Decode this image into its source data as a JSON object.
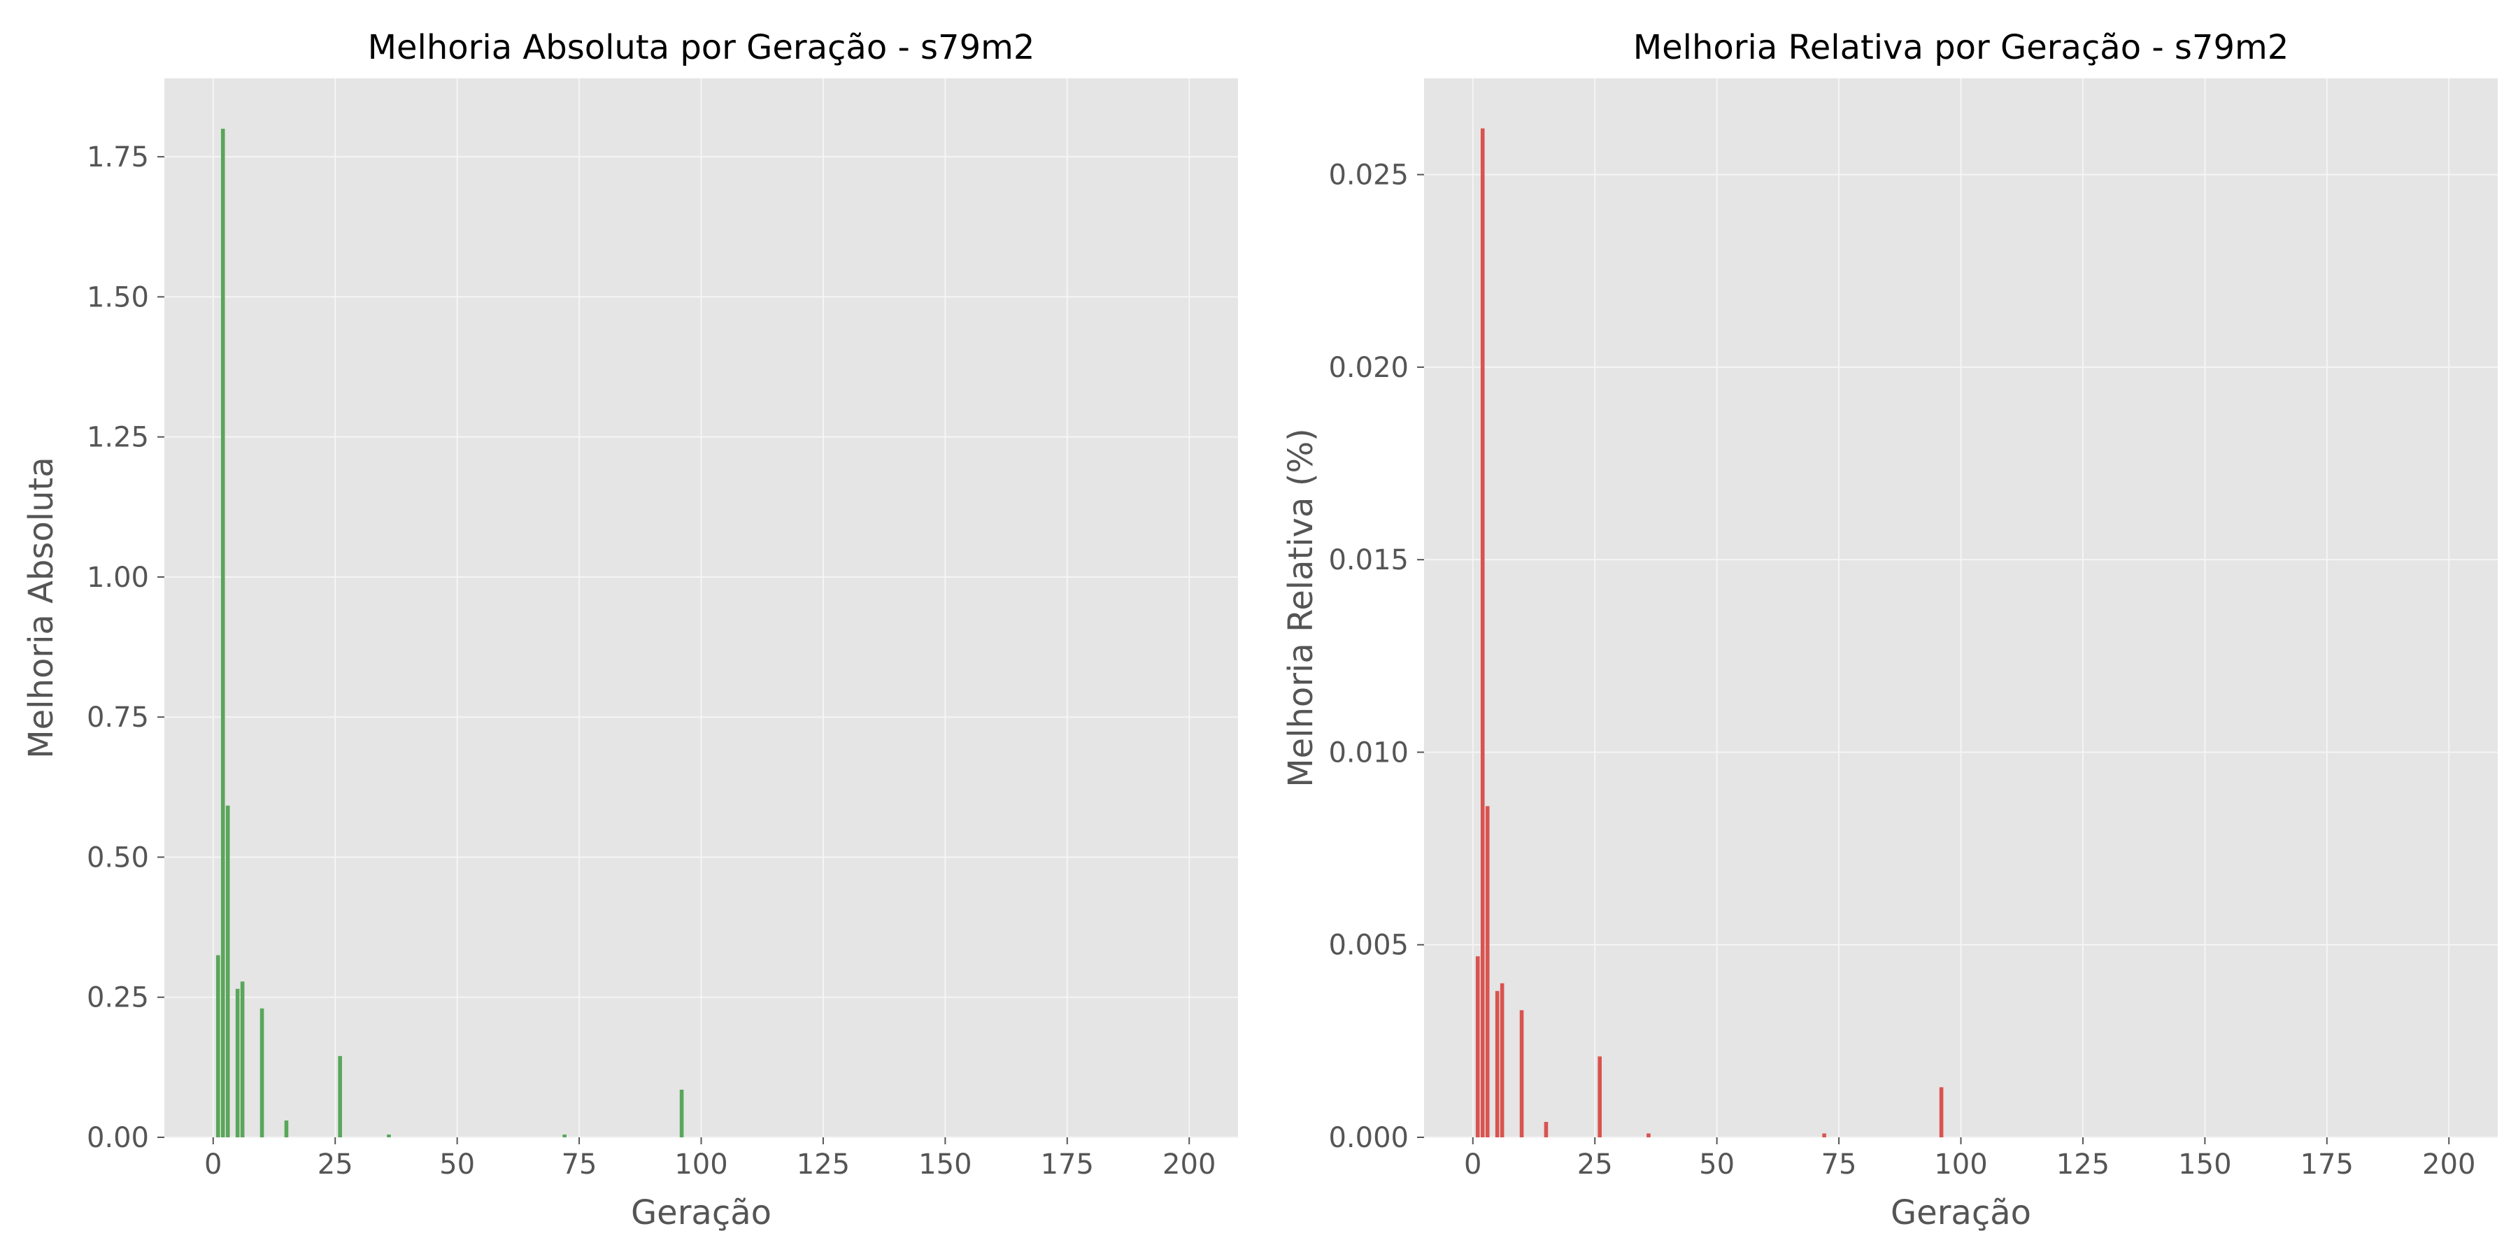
{
  "chart_data": [
    {
      "type": "bar",
      "title": "Melhoria Absoluta por Geração - s79m2",
      "xlabel": "Geração",
      "ylabel": "Melhoria Absoluta",
      "xlim": [
        -10,
        210
      ],
      "ylim": [
        0,
        1.89
      ],
      "xticks": [
        0,
        25,
        50,
        75,
        100,
        125,
        150,
        175,
        200
      ],
      "xtick_labels": [
        "0",
        "25",
        "50",
        "75",
        "100",
        "125",
        "150",
        "175",
        "200"
      ],
      "yticks": [
        0,
        0.25,
        0.5,
        0.75,
        1.0,
        1.25,
        1.5,
        1.75
      ],
      "ytick_labels": [
        "0.00",
        "0.25",
        "0.50",
        "0.75",
        "1.00",
        "1.25",
        "1.50",
        "1.75"
      ],
      "grid": true,
      "color": "#5aa65a",
      "x": [
        1,
        2,
        3,
        5,
        6,
        10,
        15,
        26,
        36,
        72,
        96
      ],
      "values": [
        0.325,
        1.8,
        0.592,
        0.265,
        0.278,
        0.23,
        0.03,
        0.145,
        0.005,
        0.005,
        0.085
      ]
    },
    {
      "type": "bar",
      "title": "Melhoria Relativa por Geração - s79m2",
      "xlabel": "Geração",
      "ylabel": "Melhoria Relativa (%)",
      "xlim": [
        -10,
        210
      ],
      "ylim": [
        0,
        0.0275
      ],
      "xticks": [
        0,
        25,
        50,
        75,
        100,
        125,
        150,
        175,
        200
      ],
      "xtick_labels": [
        "0",
        "25",
        "50",
        "75",
        "100",
        "125",
        "150",
        "175",
        "200"
      ],
      "yticks": [
        0,
        0.005,
        0.01,
        0.015,
        0.02,
        0.025
      ],
      "ytick_labels": [
        "0.000",
        "0.005",
        "0.010",
        "0.015",
        "0.020",
        "0.025"
      ],
      "grid": true,
      "color": "#d9534f",
      "x": [
        1,
        2,
        3,
        5,
        6,
        10,
        15,
        26,
        36,
        72,
        96
      ],
      "values": [
        0.0047,
        0.0262,
        0.0086,
        0.0038,
        0.004,
        0.0033,
        0.0004,
        0.0021,
        0.0001,
        0.0001,
        0.0013
      ]
    }
  ]
}
